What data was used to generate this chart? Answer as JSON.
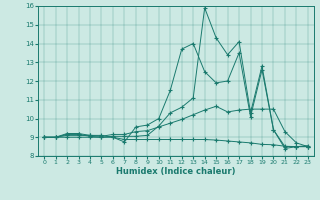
{
  "xlabel": "Humidex (Indice chaleur)",
  "bg_color": "#cce9e3",
  "line_color": "#1a7a6e",
  "xlim": [
    -0.5,
    23.5
  ],
  "ylim": [
    8,
    16
  ],
  "yticks": [
    8,
    9,
    10,
    11,
    12,
    13,
    14,
    15,
    16
  ],
  "xticks": [
    0,
    1,
    2,
    3,
    4,
    5,
    6,
    7,
    8,
    9,
    10,
    11,
    12,
    13,
    14,
    15,
    16,
    17,
    18,
    19,
    20,
    21,
    22,
    23
  ],
  "line1_x": [
    0,
    1,
    2,
    3,
    4,
    5,
    6,
    7,
    8,
    9,
    10,
    11,
    12,
    13,
    14,
    15,
    16,
    17,
    18,
    19,
    20,
    21,
    22,
    23
  ],
  "line1_y": [
    9.0,
    9.0,
    9.2,
    9.2,
    9.1,
    9.1,
    9.0,
    8.75,
    9.55,
    9.65,
    10.0,
    11.5,
    13.7,
    14.0,
    12.5,
    11.9,
    12.0,
    13.5,
    10.1,
    12.6,
    9.4,
    8.5,
    8.5,
    8.55
  ],
  "line2_x": [
    0,
    1,
    2,
    3,
    4,
    5,
    6,
    7,
    8,
    9,
    10,
    11,
    12,
    13,
    14,
    15,
    16,
    17,
    18,
    19,
    20,
    21,
    22,
    23
  ],
  "line2_y": [
    9.0,
    9.0,
    9.15,
    9.15,
    9.05,
    9.0,
    9.05,
    9.05,
    9.05,
    9.1,
    9.6,
    10.3,
    10.6,
    11.1,
    15.9,
    14.3,
    13.4,
    14.1,
    10.3,
    12.8,
    9.4,
    8.4,
    8.5,
    8.5
  ],
  "line3_x": [
    0,
    1,
    2,
    3,
    4,
    5,
    6,
    7,
    8,
    9,
    10,
    11,
    12,
    13,
    14,
    15,
    16,
    17,
    18,
    19,
    20,
    21,
    22,
    23
  ],
  "line3_y": [
    9.0,
    9.0,
    9.1,
    9.1,
    9.1,
    9.05,
    9.15,
    9.15,
    9.3,
    9.35,
    9.55,
    9.75,
    9.95,
    10.2,
    10.45,
    10.65,
    10.35,
    10.45,
    10.5,
    10.5,
    10.5,
    9.3,
    8.7,
    8.5
  ],
  "line4_x": [
    0,
    1,
    2,
    3,
    4,
    5,
    6,
    7,
    8,
    9,
    10,
    11,
    12,
    13,
    14,
    15,
    16,
    17,
    18,
    19,
    20,
    21,
    22,
    23
  ],
  "line4_y": [
    9.0,
    9.0,
    9.0,
    9.0,
    9.0,
    9.0,
    9.0,
    8.88,
    8.88,
    8.88,
    8.88,
    8.88,
    8.88,
    8.88,
    8.88,
    8.85,
    8.8,
    8.75,
    8.7,
    8.62,
    8.6,
    8.52,
    8.5,
    8.5
  ]
}
